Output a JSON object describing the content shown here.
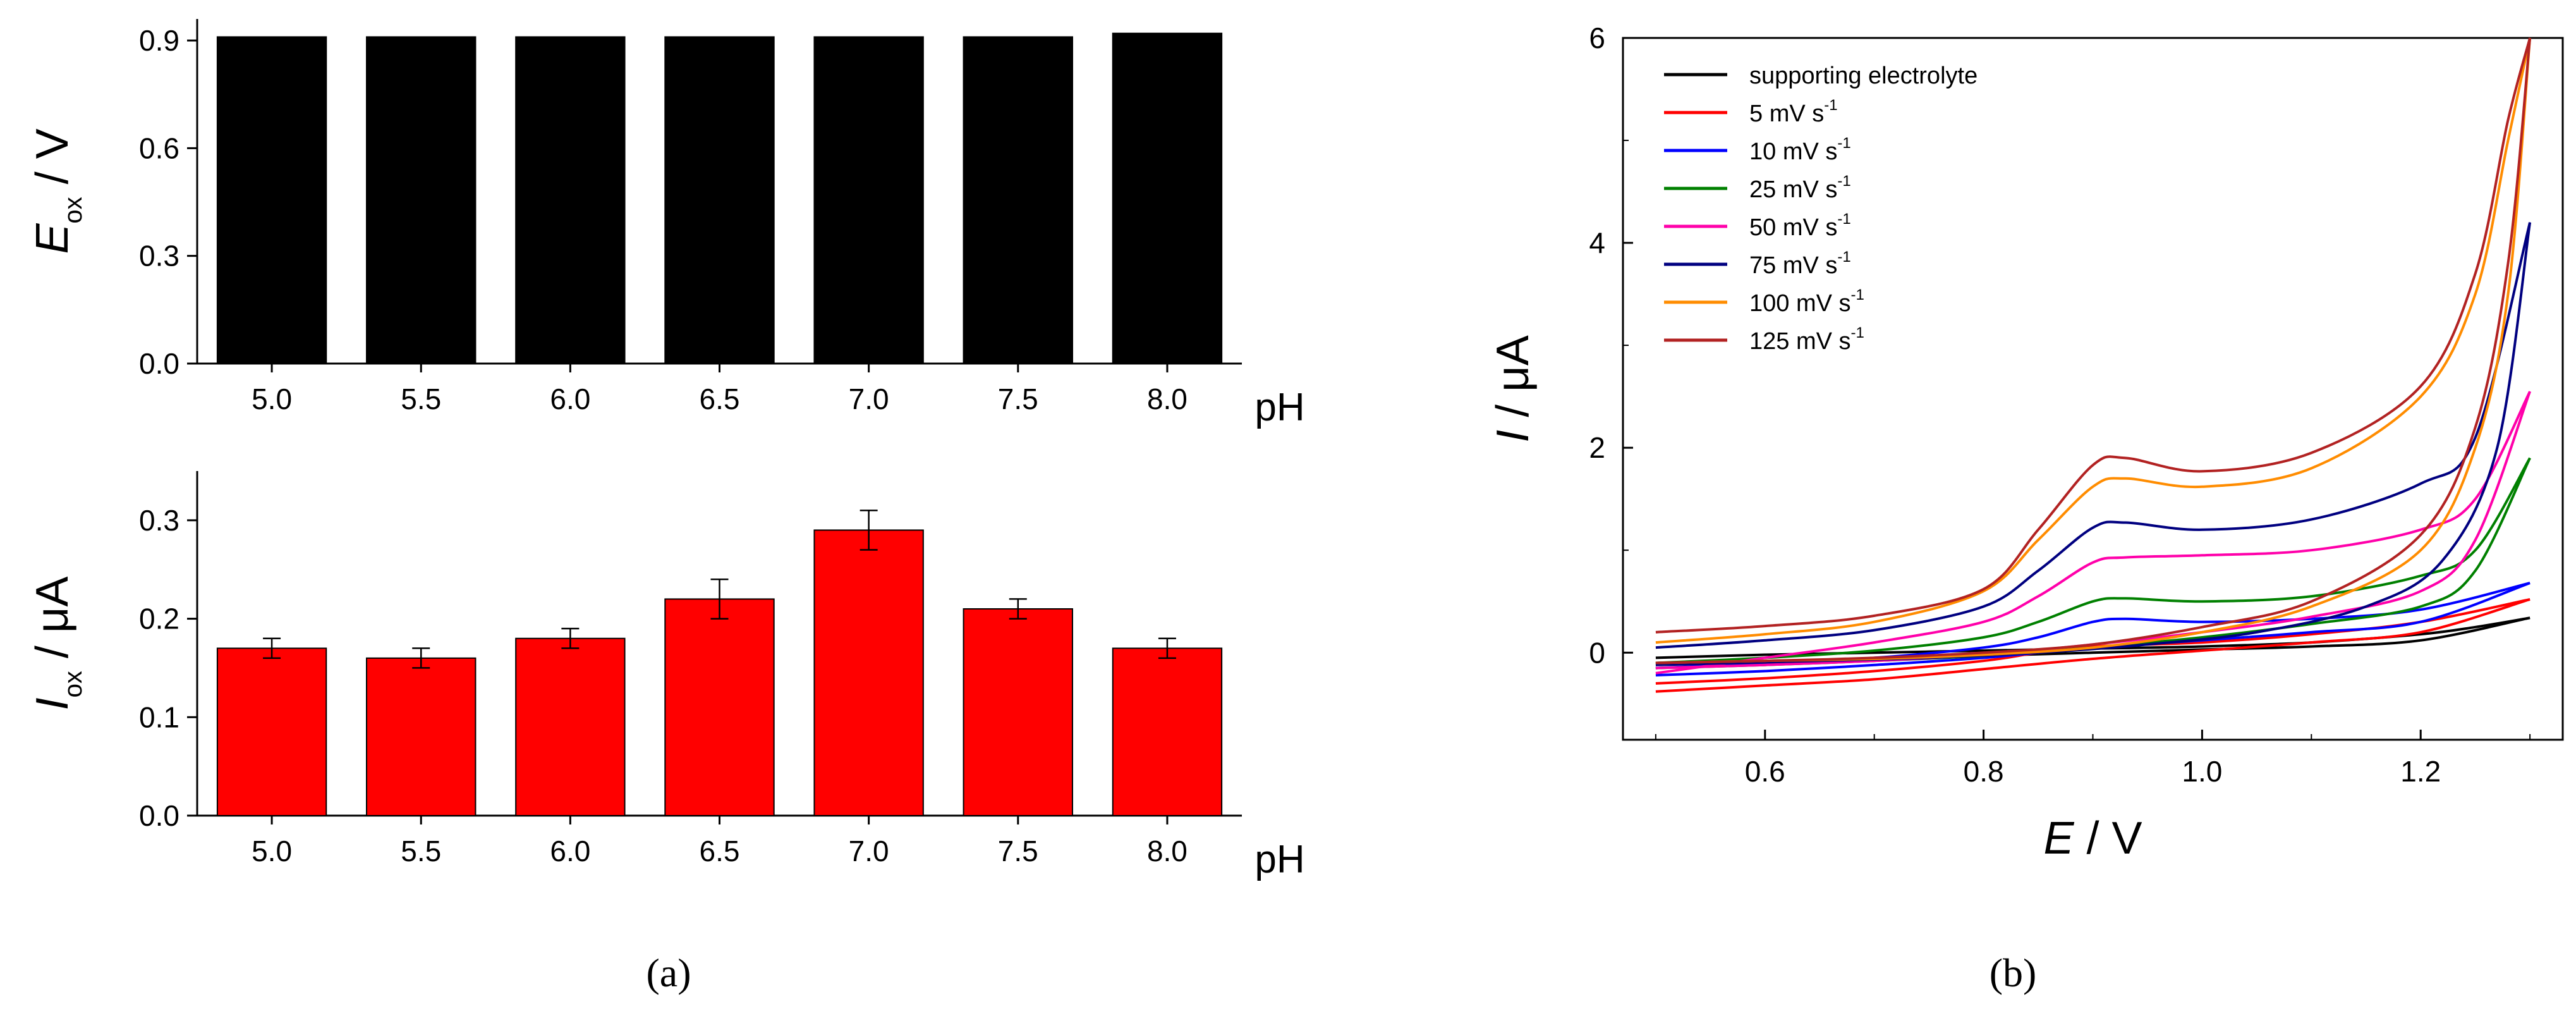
{
  "chart_data": [
    {
      "id": "a-top",
      "type": "bar",
      "panel": "(a)",
      "categories": [
        "5.0",
        "5.5",
        "6.0",
        "6.5",
        "7.0",
        "7.5",
        "8.0"
      ],
      "values": [
        0.91,
        0.91,
        0.91,
        0.91,
        0.91,
        0.91,
        0.92
      ],
      "bar_color": "#000000",
      "ylabel": {
        "symbol": "E",
        "subscript": "ox",
        "unit": " / V"
      },
      "xlabel": "pH",
      "ylim": [
        0,
        0.96
      ],
      "yticks": [
        "0.0",
        "0.3",
        "0.6",
        "0.9"
      ],
      "ytick_values": [
        0,
        0.3,
        0.6,
        0.9
      ]
    },
    {
      "id": "a-bottom",
      "type": "bar",
      "panel": "(a)",
      "categories": [
        "5.0",
        "5.5",
        "6.0",
        "6.5",
        "7.0",
        "7.5",
        "8.0"
      ],
      "values": [
        0.17,
        0.16,
        0.18,
        0.22,
        0.29,
        0.21,
        0.17
      ],
      "errors": [
        0.01,
        0.01,
        0.01,
        0.02,
        0.02,
        0.01,
        0.01
      ],
      "bar_color": "#ff0000",
      "ylabel": {
        "symbol": "I",
        "subscript": "ox",
        "unit": " / μA"
      },
      "xlabel": "pH",
      "ylim": [
        0,
        0.35
      ],
      "yticks": [
        "0.0",
        "0.1",
        "0.2",
        "0.3"
      ],
      "ytick_values": [
        0,
        0.1,
        0.2,
        0.3
      ]
    },
    {
      "id": "b",
      "type": "line",
      "panel": "(b)",
      "xlabel": {
        "symbol": "E",
        "unit": " / V"
      },
      "ylabel": {
        "symbol": "I",
        "unit": " / μA"
      },
      "xlim": [
        0.47,
        1.33
      ],
      "ylim": [
        -0.85,
        6
      ],
      "xticks": [
        "0.6",
        "0.8",
        "1.0",
        "1.2"
      ],
      "xtick_values": [
        0.6,
        0.8,
        1.0,
        1.2
      ],
      "yticks": [
        "0",
        "2",
        "4",
        "6"
      ],
      "ytick_values": [
        0,
        2,
        4,
        6
      ],
      "legend_position": "top-left",
      "series": [
        {
          "name": "supporting electrolyte",
          "label": "supporting electrolyte",
          "unit": "",
          "color": "#000000",
          "forward": [
            [
              0.5,
              -0.05
            ],
            [
              0.6,
              -0.02
            ],
            [
              0.7,
              0.0
            ],
            [
              0.8,
              0.02
            ],
            [
              0.9,
              0.04
            ],
            [
              1.0,
              0.06
            ],
            [
              1.1,
              0.1
            ],
            [
              1.2,
              0.18
            ],
            [
              1.25,
              0.25
            ],
            [
              1.3,
              0.34
            ]
          ],
          "reverse": [
            [
              1.3,
              0.34
            ],
            [
              1.2,
              0.12
            ],
            [
              1.1,
              0.06
            ],
            [
              1.0,
              0.03
            ],
            [
              0.9,
              0.0
            ],
            [
              0.8,
              -0.03
            ],
            [
              0.7,
              -0.06
            ],
            [
              0.6,
              -0.08
            ],
            [
              0.5,
              -0.1
            ]
          ]
        },
        {
          "name": "5 mV s-1",
          "label": "5 mV s",
          "unit": "-1",
          "color": "#ff0000",
          "forward": [
            [
              0.5,
              -0.3
            ],
            [
              0.6,
              -0.25
            ],
            [
              0.7,
              -0.18
            ],
            [
              0.8,
              -0.08
            ],
            [
              0.85,
              0.0
            ],
            [
              0.9,
              0.06
            ],
            [
              1.0,
              0.1
            ],
            [
              1.1,
              0.18
            ],
            [
              1.2,
              0.3
            ],
            [
              1.3,
              0.52
            ]
          ],
          "reverse": [
            [
              1.3,
              0.52
            ],
            [
              1.2,
              0.2
            ],
            [
              1.1,
              0.1
            ],
            [
              1.0,
              0.02
            ],
            [
              0.9,
              -0.06
            ],
            [
              0.8,
              -0.16
            ],
            [
              0.7,
              -0.26
            ],
            [
              0.6,
              -0.32
            ],
            [
              0.5,
              -0.38
            ]
          ]
        },
        {
          "name": "10 mV s-1",
          "label": "10 mV s",
          "unit": "-1",
          "color": "#0000ff",
          "forward": [
            [
              0.5,
              -0.15
            ],
            [
              0.6,
              -0.1
            ],
            [
              0.7,
              -0.05
            ],
            [
              0.8,
              0.05
            ],
            [
              0.85,
              0.15
            ],
            [
              0.9,
              0.3
            ],
            [
              0.93,
              0.33
            ],
            [
              1.0,
              0.3
            ],
            [
              1.1,
              0.33
            ],
            [
              1.2,
              0.42
            ],
            [
              1.3,
              0.68
            ]
          ],
          "reverse": [
            [
              1.3,
              0.68
            ],
            [
              1.2,
              0.3
            ],
            [
              1.1,
              0.2
            ],
            [
              1.0,
              0.12
            ],
            [
              0.9,
              0.05
            ],
            [
              0.8,
              -0.05
            ],
            [
              0.7,
              -0.12
            ],
            [
              0.6,
              -0.18
            ],
            [
              0.5,
              -0.22
            ]
          ]
        },
        {
          "name": "25 mV s-1",
          "label": "25 mV s",
          "unit": "-1",
          "color": "#008000",
          "forward": [
            [
              0.5,
              -0.1
            ],
            [
              0.6,
              -0.05
            ],
            [
              0.7,
              0.02
            ],
            [
              0.8,
              0.15
            ],
            [
              0.85,
              0.3
            ],
            [
              0.9,
              0.5
            ],
            [
              0.93,
              0.53
            ],
            [
              1.0,
              0.5
            ],
            [
              1.1,
              0.55
            ],
            [
              1.2,
              0.75
            ],
            [
              1.25,
              1.0
            ],
            [
              1.3,
              1.9
            ]
          ],
          "reverse": [
            [
              1.3,
              1.9
            ],
            [
              1.25,
              0.8
            ],
            [
              1.2,
              0.45
            ],
            [
              1.1,
              0.28
            ],
            [
              1.0,
              0.15
            ],
            [
              0.9,
              0.05
            ],
            [
              0.8,
              -0.03
            ],
            [
              0.7,
              -0.08
            ],
            [
              0.6,
              -0.12
            ],
            [
              0.5,
              -0.15
            ]
          ]
        },
        {
          "name": "50 mV s-1",
          "label": "50 mV s",
          "unit": "-1",
          "color": "#ff00aa",
          "forward": [
            [
              0.5,
              -0.2
            ],
            [
              0.6,
              -0.05
            ],
            [
              0.7,
              0.1
            ],
            [
              0.8,
              0.3
            ],
            [
              0.85,
              0.55
            ],
            [
              0.9,
              0.88
            ],
            [
              0.93,
              0.93
            ],
            [
              1.0,
              0.95
            ],
            [
              1.1,
              1.0
            ],
            [
              1.2,
              1.2
            ],
            [
              1.25,
              1.5
            ],
            [
              1.3,
              2.55
            ]
          ],
          "reverse": [
            [
              1.3,
              2.55
            ],
            [
              1.25,
              1.1
            ],
            [
              1.2,
              0.6
            ],
            [
              1.1,
              0.35
            ],
            [
              1.0,
              0.2
            ],
            [
              0.9,
              0.08
            ],
            [
              0.8,
              -0.02
            ],
            [
              0.7,
              -0.08
            ],
            [
              0.6,
              -0.12
            ],
            [
              0.5,
              -0.15
            ]
          ]
        },
        {
          "name": "75 mV s-1",
          "label": "75 mV s",
          "unit": "-1",
          "color": "#000080",
          "forward": [
            [
              0.5,
              0.05
            ],
            [
              0.6,
              0.12
            ],
            [
              0.7,
              0.22
            ],
            [
              0.8,
              0.45
            ],
            [
              0.85,
              0.8
            ],
            [
              0.9,
              1.22
            ],
            [
              0.93,
              1.27
            ],
            [
              1.0,
              1.2
            ],
            [
              1.1,
              1.3
            ],
            [
              1.2,
              1.65
            ],
            [
              1.25,
              2.1
            ],
            [
              1.3,
              4.2
            ]
          ],
          "reverse": [
            [
              1.3,
              4.2
            ],
            [
              1.27,
              2.0
            ],
            [
              1.22,
              0.9
            ],
            [
              1.15,
              0.45
            ],
            [
              1.05,
              0.2
            ],
            [
              0.95,
              0.08
            ],
            [
              0.85,
              0.0
            ],
            [
              0.75,
              -0.05
            ],
            [
              0.65,
              -0.08
            ],
            [
              0.5,
              -0.12
            ]
          ]
        },
        {
          "name": "100 mV s-1",
          "label": "100 mV s",
          "unit": "-1",
          "color": "#ff8c00",
          "forward": [
            [
              0.5,
              0.1
            ],
            [
              0.6,
              0.18
            ],
            [
              0.7,
              0.3
            ],
            [
              0.8,
              0.6
            ],
            [
              0.85,
              1.1
            ],
            [
              0.9,
              1.62
            ],
            [
              0.93,
              1.7
            ],
            [
              1.0,
              1.62
            ],
            [
              1.1,
              1.8
            ],
            [
              1.2,
              2.5
            ],
            [
              1.25,
              3.5
            ],
            [
              1.28,
              5.0
            ],
            [
              1.3,
              6.0
            ]
          ],
          "reverse": [
            [
              1.3,
              6.0
            ],
            [
              1.28,
              3.5
            ],
            [
              1.25,
              2.0
            ],
            [
              1.2,
              1.0
            ],
            [
              1.1,
              0.45
            ],
            [
              1.0,
              0.2
            ],
            [
              0.9,
              0.05
            ],
            [
              0.8,
              -0.02
            ],
            [
              0.7,
              -0.06
            ],
            [
              0.6,
              -0.08
            ],
            [
              0.5,
              -0.1
            ]
          ]
        },
        {
          "name": "125 mV s-1",
          "label": "125 mV s",
          "unit": "-1",
          "color": "#b22222",
          "forward": [
            [
              0.5,
              0.2
            ],
            [
              0.6,
              0.26
            ],
            [
              0.7,
              0.36
            ],
            [
              0.8,
              0.62
            ],
            [
              0.85,
              1.2
            ],
            [
              0.9,
              1.83
            ],
            [
              0.93,
              1.9
            ],
            [
              1.0,
              1.77
            ],
            [
              1.1,
              1.95
            ],
            [
              1.2,
              2.6
            ],
            [
              1.25,
              3.7
            ],
            [
              1.28,
              5.2
            ],
            [
              1.3,
              6.0
            ]
          ],
          "reverse": [
            [
              1.3,
              6.0
            ],
            [
              1.28,
              3.8
            ],
            [
              1.25,
              2.2
            ],
            [
              1.2,
              1.15
            ],
            [
              1.1,
              0.5
            ],
            [
              1.0,
              0.25
            ],
            [
              0.9,
              0.08
            ],
            [
              0.8,
              0.0
            ],
            [
              0.7,
              -0.05
            ],
            [
              0.6,
              -0.08
            ],
            [
              0.5,
              -0.1
            ]
          ]
        }
      ]
    }
  ]
}
